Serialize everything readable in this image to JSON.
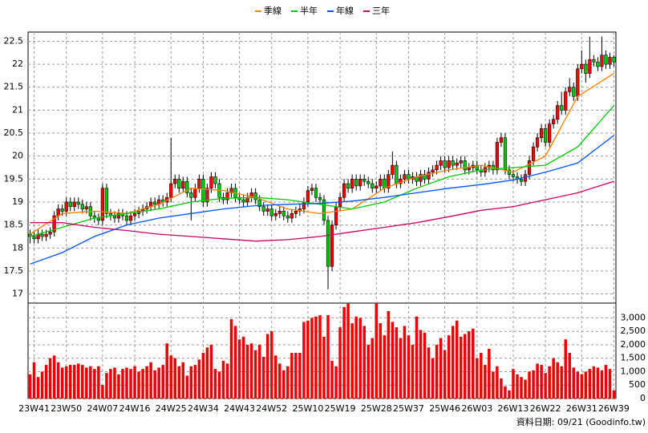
{
  "chart_data": {
    "type": "candlestick",
    "categories": [
      null,
      "23W41",
      null,
      null,
      null,
      null,
      null,
      null,
      null,
      "23W50",
      null,
      null,
      null,
      null,
      null,
      null,
      null,
      null,
      "24W07",
      null,
      null,
      null,
      null,
      null,
      null,
      null,
      "24W16",
      null,
      null,
      null,
      null,
      null,
      null,
      null,
      null,
      "24W25",
      null,
      null,
      null,
      null,
      null,
      null,
      null,
      "24W34",
      null,
      null,
      null,
      null,
      null,
      null,
      null,
      null,
      "24W43",
      null,
      null,
      null,
      null,
      null,
      null,
      null,
      "24W52",
      null,
      null,
      null,
      null,
      null,
      null,
      null,
      null,
      "25W10",
      null,
      null,
      null,
      null,
      null,
      null,
      null,
      "25W19",
      null,
      null,
      null,
      null,
      null,
      null,
      null,
      null,
      "25W28",
      null,
      null,
      null,
      null,
      null,
      null,
      null,
      "25W37",
      null,
      null,
      null,
      null,
      null,
      null,
      null,
      null,
      "25W46",
      null,
      null,
      null,
      null,
      null,
      null,
      null,
      "26W03",
      null,
      null,
      null,
      null,
      null,
      null,
      null,
      null,
      "26W13",
      null,
      null,
      null,
      null,
      null,
      null,
      null,
      "26W22",
      null,
      null,
      null,
      null,
      null,
      null,
      null,
      null,
      "26W31",
      null,
      null,
      null,
      null,
      null,
      null,
      null,
      "26W39"
    ],
    "open": [
      18.3,
      18.25,
      18.2,
      18.3,
      18.25,
      18.3,
      18.35,
      18.7,
      18.85,
      18.8,
      19.0,
      18.9,
      19.0,
      18.95,
      18.85,
      18.9,
      18.7,
      18.65,
      18.6,
      19.3,
      18.75,
      18.7,
      18.65,
      18.75,
      18.7,
      18.6,
      18.7,
      18.75,
      18.8,
      18.85,
      18.9,
      19.0,
      18.95,
      19.05,
      19.0,
      19.1,
      19.4,
      19.5,
      19.3,
      19.45,
      19.2,
      19.1,
      19.3,
      19.5,
      19.0,
      19.3,
      19.55,
      19.4,
      19.1,
      19.05,
      19.2,
      19.3,
      19.1,
      19.05,
      19.0,
      19.1,
      19.2,
      19.05,
      18.9,
      18.8,
      18.85,
      18.7,
      18.75,
      18.8,
      18.7,
      18.65,
      18.75,
      18.8,
      18.85,
      19.0,
      19.25,
      19.3,
      19.1,
      19.05,
      18.6,
      17.6,
      18.5,
      18.9,
      19.1,
      19.4,
      19.3,
      19.5,
      19.35,
      19.5,
      19.45,
      19.4,
      19.3,
      19.35,
      19.5,
      19.3,
      19.6,
      19.8,
      19.4,
      19.5,
      19.6,
      19.5,
      19.55,
      19.45,
      19.6,
      19.5,
      19.65,
      19.7,
      19.8,
      19.9,
      19.75,
      19.9,
      19.8,
      19.85,
      19.9,
      19.7,
      19.75,
      19.8,
      19.7,
      19.65,
      19.75,
      19.8,
      19.7,
      20.3,
      20.4,
      19.7,
      19.6,
      19.55,
      19.5,
      19.45,
      19.6,
      19.9,
      20.2,
      20.4,
      20.6,
      20.3,
      20.7,
      20.8,
      21.1,
      21.0,
      21.4,
      21.5,
      21.3,
      21.9,
      22.0,
      21.8,
      22.1,
      22.05,
      21.95,
      22.2,
      22.0,
      22.15
    ],
    "high": [
      18.4,
      18.35,
      18.4,
      18.4,
      18.4,
      18.45,
      18.8,
      18.95,
      18.95,
      19.1,
      19.1,
      19.1,
      19.1,
      19.05,
      19.0,
      19.0,
      18.8,
      18.75,
      19.4,
      19.4,
      18.85,
      18.8,
      18.85,
      18.85,
      18.8,
      18.8,
      18.85,
      18.9,
      18.95,
      19.0,
      19.1,
      19.1,
      19.15,
      19.15,
      19.2,
      20.4,
      19.6,
      19.6,
      19.55,
      19.55,
      19.3,
      19.4,
      19.6,
      19.6,
      19.4,
      19.65,
      19.65,
      19.5,
      19.2,
      19.3,
      19.4,
      19.4,
      19.2,
      19.15,
      19.2,
      19.3,
      19.3,
      19.15,
      19.0,
      18.95,
      18.95,
      18.85,
      18.9,
      18.9,
      18.8,
      18.85,
      18.9,
      18.95,
      19.1,
      19.35,
      19.4,
      19.4,
      19.2,
      19.15,
      18.7,
      18.6,
      19.0,
      19.2,
      19.5,
      19.5,
      19.6,
      19.6,
      19.6,
      19.6,
      19.55,
      19.5,
      19.45,
      19.6,
      19.6,
      19.7,
      20.1,
      19.9,
      19.6,
      19.7,
      19.7,
      19.65,
      19.65,
      19.7,
      19.7,
      19.75,
      19.8,
      19.9,
      20.0,
      20.0,
      20.0,
      20.0,
      19.95,
      20.0,
      20.0,
      19.85,
      19.9,
      19.9,
      19.8,
      19.85,
      19.9,
      19.9,
      20.4,
      20.5,
      20.5,
      19.8,
      19.7,
      19.65,
      19.6,
      19.7,
      20.0,
      20.3,
      20.5,
      20.7,
      20.7,
      20.8,
      20.9,
      21.2,
      21.4,
      21.5,
      21.7,
      21.6,
      22.0,
      22.3,
      22.1,
      22.6,
      22.2,
      22.15,
      22.6,
      22.3,
      22.25,
      22.2
    ],
    "low": [
      18.1,
      18.1,
      18.1,
      18.15,
      18.15,
      18.2,
      18.25,
      18.6,
      18.7,
      18.7,
      18.8,
      18.8,
      18.85,
      18.75,
      18.75,
      18.6,
      18.55,
      18.5,
      18.5,
      18.65,
      18.6,
      18.55,
      18.55,
      18.6,
      18.5,
      18.5,
      18.6,
      18.65,
      18.7,
      18.75,
      18.8,
      18.85,
      18.85,
      18.9,
      18.9,
      19.0,
      19.3,
      19.2,
      19.2,
      19.1,
      18.6,
      19.0,
      19.2,
      18.9,
      18.9,
      19.2,
      19.3,
      19.0,
      18.95,
      18.95,
      19.1,
      19.0,
      18.95,
      18.9,
      18.9,
      19.0,
      18.95,
      18.8,
      18.7,
      18.7,
      18.6,
      18.6,
      18.65,
      18.6,
      18.55,
      18.55,
      18.65,
      18.7,
      18.75,
      18.9,
      19.15,
      19.0,
      18.95,
      18.5,
      17.1,
      17.5,
      18.4,
      18.8,
      19.0,
      19.2,
      19.2,
      19.25,
      19.25,
      19.35,
      19.3,
      19.2,
      19.2,
      19.25,
      19.2,
      19.2,
      19.5,
      19.3,
      19.3,
      19.4,
      19.4,
      19.4,
      19.35,
      19.35,
      19.4,
      19.4,
      19.55,
      19.6,
      19.7,
      19.65,
      19.65,
      19.7,
      19.7,
      19.75,
      19.6,
      19.6,
      19.65,
      19.6,
      19.55,
      19.55,
      19.65,
      19.6,
      19.6,
      20.2,
      19.6,
      19.5,
      19.45,
      19.4,
      19.35,
      19.35,
      19.5,
      19.8,
      20.1,
      20.3,
      20.2,
      20.2,
      20.6,
      20.7,
      20.9,
      20.9,
      21.3,
      21.2,
      21.2,
      21.8,
      21.6,
      21.7,
      21.95,
      21.85,
      21.85,
      21.9,
      21.9,
      21.95
    ],
    "close": [
      18.25,
      18.2,
      18.3,
      18.25,
      18.3,
      18.35,
      18.7,
      18.85,
      18.8,
      19.0,
      18.9,
      19.0,
      18.95,
      18.85,
      18.9,
      18.7,
      18.65,
      18.6,
      19.3,
      18.75,
      18.7,
      18.65,
      18.75,
      18.7,
      18.6,
      18.7,
      18.75,
      18.8,
      18.85,
      18.9,
      19.0,
      18.95,
      19.05,
      19.0,
      19.1,
      19.4,
      19.5,
      19.3,
      19.45,
      19.2,
      19.1,
      19.3,
      19.5,
      19.0,
      19.3,
      19.55,
      19.4,
      19.1,
      19.05,
      19.2,
      19.3,
      19.1,
      19.05,
      19.0,
      19.1,
      19.2,
      19.05,
      18.9,
      18.8,
      18.85,
      18.7,
      18.75,
      18.8,
      18.7,
      18.65,
      18.75,
      18.8,
      18.85,
      19.0,
      19.25,
      19.3,
      19.1,
      19.05,
      18.6,
      17.6,
      18.5,
      18.9,
      19.1,
      19.4,
      19.3,
      19.5,
      19.35,
      19.5,
      19.45,
      19.4,
      19.3,
      19.35,
      19.5,
      19.3,
      19.6,
      19.8,
      19.4,
      19.5,
      19.6,
      19.5,
      19.55,
      19.45,
      19.6,
      19.5,
      19.65,
      19.7,
      19.8,
      19.9,
      19.75,
      19.9,
      19.8,
      19.85,
      19.9,
      19.7,
      19.75,
      19.8,
      19.7,
      19.65,
      19.75,
      19.8,
      19.7,
      20.3,
      20.4,
      19.7,
      19.6,
      19.55,
      19.5,
      19.45,
      19.6,
      19.9,
      20.2,
      20.4,
      20.6,
      20.3,
      20.7,
      20.8,
      21.1,
      21.0,
      21.4,
      21.5,
      21.3,
      21.9,
      22.0,
      21.8,
      22.1,
      22.05,
      21.95,
      22.2,
      22.0,
      22.15,
      22.05
    ],
    "up_color": "#ff0000",
    "down_color": "#00cc00",
    "ylim": [
      16.8,
      22.7
    ],
    "yticks": [
      17,
      17.5,
      18,
      18.5,
      19,
      19.5,
      20,
      20.5,
      21,
      21.5,
      22,
      22.5
    ],
    "grid": true,
    "lines": [
      {
        "name": "季線",
        "color": "#ff8000",
        "x": [
          0,
          8,
          16,
          24,
          32,
          40,
          48,
          56,
          64,
          72,
          80,
          88,
          96,
          104,
          112,
          120,
          128,
          136,
          145
        ],
        "values": [
          18.3,
          18.75,
          18.8,
          18.75,
          18.95,
          19.3,
          19.25,
          19.1,
          18.85,
          18.75,
          18.85,
          19.3,
          19.55,
          19.7,
          19.8,
          19.65,
          20.0,
          21.3,
          21.8
        ]
      },
      {
        "name": "半年",
        "color": "#00cc00",
        "x": [
          0,
          8,
          16,
          24,
          32,
          40,
          48,
          56,
          64,
          72,
          80,
          88,
          96,
          104,
          112,
          120,
          128,
          136,
          145
        ],
        "values": [
          18.25,
          18.45,
          18.65,
          18.75,
          18.85,
          19.0,
          19.08,
          19.1,
          19.05,
          18.95,
          18.85,
          19.0,
          19.3,
          19.55,
          19.7,
          19.75,
          19.8,
          20.2,
          21.1
        ]
      },
      {
        "name": "年線",
        "color": "#0055ff",
        "x": [
          0,
          8,
          16,
          24,
          32,
          40,
          48,
          56,
          64,
          72,
          80,
          88,
          96,
          104,
          112,
          120,
          128,
          136,
          145
        ],
        "values": [
          17.65,
          17.9,
          18.25,
          18.5,
          18.65,
          18.75,
          18.85,
          18.92,
          18.95,
          18.97,
          19.02,
          19.1,
          19.2,
          19.3,
          19.38,
          19.48,
          19.65,
          19.85,
          20.45
        ]
      },
      {
        "name": "三年",
        "color": "#cc0066",
        "x": [
          0,
          8,
          16,
          24,
          32,
          40,
          48,
          56,
          64,
          72,
          80,
          88,
          96,
          104,
          112,
          120,
          128,
          136,
          145
        ],
        "values": [
          18.55,
          18.55,
          18.45,
          18.38,
          18.3,
          18.25,
          18.2,
          18.15,
          18.18,
          18.25,
          18.35,
          18.45,
          18.55,
          18.68,
          18.82,
          18.9,
          19.05,
          19.2,
          19.45
        ]
      }
    ],
    "legend": "top",
    "volume": {
      "color": "#ee0000",
      "ylim": [
        0,
        3550
      ],
      "yticks": [
        0,
        500,
        {
          "value": 1000,
          "label": "1,000"
        },
        {
          "value": 1500,
          "label": "1,500"
        },
        {
          "value": 2000,
          "label": "2,000"
        },
        {
          "value": 2500,
          "label": "2,500"
        },
        {
          "value": 3000,
          "label": "3,000"
        }
      ],
      "values": [
        900,
        1350,
        800,
        1000,
        1250,
        1500,
        1600,
        1350,
        1150,
        1200,
        1250,
        1250,
        1300,
        1250,
        1150,
        1200,
        1100,
        1200,
        500,
        950,
        1100,
        1150,
        900,
        1100,
        1150,
        1100,
        1200,
        1000,
        1100,
        1200,
        1350,
        1050,
        1150,
        1250,
        2050,
        1600,
        1500,
        1200,
        1350,
        850,
        1200,
        1250,
        1450,
        1700,
        1900,
        2000,
        1100,
        1000,
        1400,
        1300,
        2950,
        2700,
        2200,
        2300,
        2000,
        2050,
        1800,
        2000,
        1550,
        2400,
        2500,
        1600,
        1300,
        1050,
        1200,
        1700,
        1700,
        1700,
        2850,
        2900,
        3000,
        3050,
        3100,
        2300,
        3100,
        1400,
        1200,
        2650,
        3400,
        3550,
        2800,
        3050,
        3000,
        2700,
        2000,
        2250,
        3550,
        2800,
        2350,
        3250,
        2850,
        2650,
        2250,
        2700,
        2350,
        2000,
        3050,
        2550,
        2450,
        1900,
        1500,
        2000,
        2250,
        1800,
        2350,
        2700,
        2900,
        2300,
        2400,
        2500,
        2600,
        1500,
        1700,
        1250,
        1850,
        1000,
        1200,
        750,
        450,
        300,
        1100,
        900,
        800,
        700,
        1000,
        1050,
        1300,
        1250,
        950,
        1200,
        1500,
        1350,
        1200,
        2200,
        1700,
        1150,
        1000,
        900,
        1000,
        1100,
        1200,
        1150,
        1050,
        1250,
        1100,
        300
      ]
    },
    "footer": "資料日期: 09/21 (Goodinfo.tw)"
  }
}
